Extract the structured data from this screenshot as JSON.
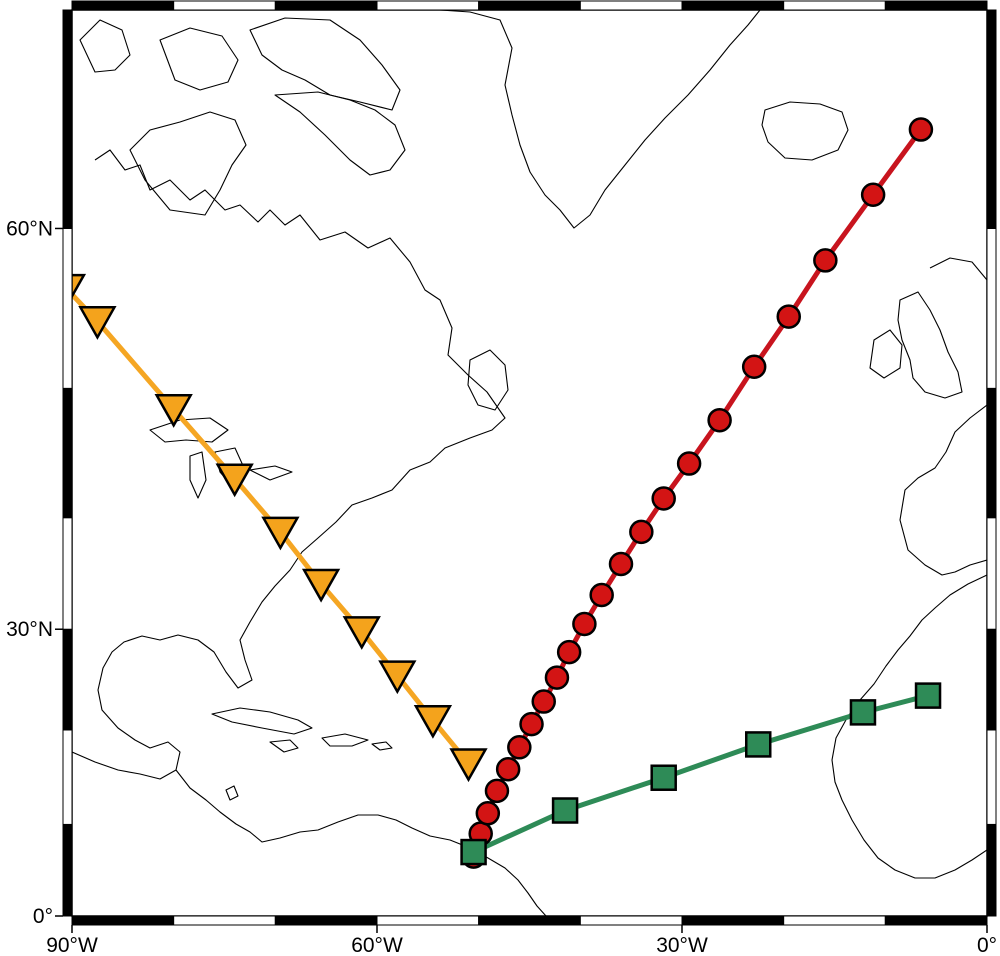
{
  "map": {
    "projection": "Mercator",
    "region": {
      "lon": [
        -90,
        0
      ],
      "lat": [
        0,
        70
      ]
    },
    "frame": "plain fancy black-white",
    "axes": {
      "x_ticks": [
        {
          "lon": -90,
          "label": "90°W"
        },
        {
          "lon": -60,
          "label": "60°W"
        },
        {
          "lon": -30,
          "label": "30°W"
        },
        {
          "lon": 0,
          "label": "0°"
        }
      ],
      "y_ticks": [
        {
          "lat": 0,
          "label": "0°"
        },
        {
          "lat": 30,
          "label": "30°N"
        },
        {
          "lat": 60,
          "label": "60°N"
        }
      ]
    }
  },
  "chart_data": {
    "type": "line",
    "series": [
      {
        "color": "#f4a31c",
        "line_color": "#f5a623",
        "marker": "inverted-triangle",
        "points": [
          [
            -90.5,
            56.5
          ],
          [
            -87.5,
            54.5
          ],
          [
            -80.0,
            48.5
          ],
          [
            -74.0,
            43.2
          ],
          [
            -69.5,
            38.8
          ],
          [
            -65.5,
            34.2
          ],
          [
            -61.5,
            29.8
          ],
          [
            -58.0,
            25.5
          ],
          [
            -54.5,
            21.0
          ],
          [
            -51.0,
            16.5
          ]
        ]
      },
      {
        "color": "#d31414",
        "line_color": "#c8141e",
        "marker": "circle",
        "points": [
          [
            -50.5,
            6.5
          ],
          [
            -49.8,
            9.0
          ],
          [
            -49.1,
            11.2
          ],
          [
            -48.2,
            13.6
          ],
          [
            -47.1,
            15.9
          ],
          [
            -46.0,
            18.2
          ],
          [
            -44.8,
            20.6
          ],
          [
            -43.6,
            22.9
          ],
          [
            -42.3,
            25.3
          ],
          [
            -41.1,
            27.8
          ],
          [
            -39.6,
            30.5
          ],
          [
            -37.9,
            33.2
          ],
          [
            -36.0,
            36.0
          ],
          [
            -34.0,
            38.8
          ],
          [
            -31.8,
            41.6
          ],
          [
            -29.3,
            44.4
          ],
          [
            -26.3,
            47.7
          ],
          [
            -22.9,
            51.5
          ],
          [
            -19.5,
            54.8
          ],
          [
            -15.9,
            58.2
          ],
          [
            -11.2,
            61.8
          ],
          [
            -6.5,
            65.0
          ]
        ]
      },
      {
        "color": "#2e8b57",
        "line_color": "#2e8b57",
        "marker": "square",
        "points": [
          [
            -50.5,
            7.0
          ],
          [
            -41.5,
            11.5
          ],
          [
            -31.8,
            15.0
          ],
          [
            -22.5,
            18.5
          ],
          [
            -12.2,
            21.8
          ],
          [
            -5.8,
            23.5
          ]
        ]
      }
    ]
  }
}
